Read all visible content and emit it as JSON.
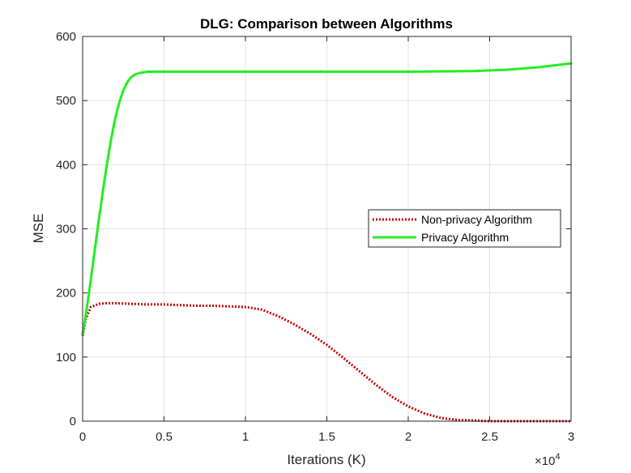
{
  "chart_data": {
    "type": "line",
    "title": "DLG: Comparison between Algorithms",
    "xlabel": "Iterations (K)",
    "ylabel": "MSE",
    "x_multiplier": "×10",
    "x_multiplier_exp": "4",
    "xlim": [
      0,
      30000
    ],
    "ylim": [
      0,
      600
    ],
    "xticks": [
      0,
      5000,
      10000,
      15000,
      20000,
      25000,
      30000
    ],
    "xtick_labels": [
      "0",
      "0.5",
      "1",
      "1.5",
      "2",
      "2.5",
      "3"
    ],
    "yticks": [
      0,
      100,
      200,
      300,
      400,
      500,
      600
    ],
    "ytick_labels": [
      "0",
      "100",
      "200",
      "300",
      "400",
      "500",
      "600"
    ],
    "grid": true,
    "legend_position": "right",
    "series": [
      {
        "name": "Non-privacy Algorithm",
        "color": "#cc0000",
        "style": "dotted",
        "x": [
          0,
          200,
          500,
          1000,
          1500,
          2000,
          3000,
          4000,
          5000,
          6000,
          7000,
          8000,
          9000,
          10000,
          11000,
          12000,
          13000,
          14000,
          15000,
          16000,
          17000,
          18000,
          19000,
          20000,
          21000,
          22000,
          23000,
          24000,
          25000,
          26000,
          27000,
          28000,
          29000,
          30000
        ],
        "y": [
          133,
          160,
          178,
          183,
          184,
          184,
          183,
          182,
          182,
          181,
          180,
          180,
          179,
          178,
          174,
          164,
          151,
          136,
          119,
          99,
          78,
          57,
          38,
          23,
          12,
          5,
          2,
          1,
          0,
          0,
          0,
          0,
          0,
          0
        ]
      },
      {
        "name": "Privacy Algorithm",
        "color": "#22ee22",
        "style": "solid",
        "x": [
          0,
          250,
          500,
          750,
          1000,
          1250,
          1500,
          1750,
          2000,
          2250,
          2500,
          2750,
          3000,
          3250,
          3500,
          3750,
          4000,
          4500,
          5000,
          7500,
          10000,
          15000,
          20000,
          24000,
          26000,
          28000,
          30000
        ],
        "y": [
          135,
          175,
          220,
          268,
          315,
          360,
          402,
          440,
          472,
          497,
          516,
          529,
          537,
          541,
          543,
          544,
          545,
          545,
          545,
          545,
          545,
          545,
          545,
          546,
          548,
          552,
          558
        ]
      }
    ]
  }
}
